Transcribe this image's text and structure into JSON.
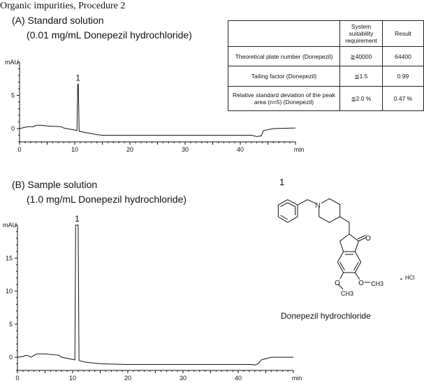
{
  "title": "Organic impurities, Procedure 2",
  "colors": {
    "trace": "#111111",
    "axis": "#111111"
  },
  "table": {
    "headers": [
      "",
      "System suitability requirement",
      "Result"
    ],
    "rows": [
      {
        "parameter": "Theoretical plate number (Donepezil)",
        "requirement": "≧40000",
        "result": "64400"
      },
      {
        "parameter": "Tailing factor (Donepezil)",
        "requirement": "≦1.5",
        "result": "0.99"
      },
      {
        "parameter": "Relative standard deviation of the peak area (n=5) (Donepezil)",
        "requirement": "≦2.0 %",
        "result": "0.47 %"
      }
    ]
  },
  "structure": {
    "label_number": "1",
    "name": "Donepezil hydrochloride",
    "atoms": {
      "n": "N",
      "o": "O",
      "ch3": "CH3",
      "hcl": "HCl",
      "dot": "•"
    }
  },
  "chart_data": [
    {
      "type": "line",
      "title": "(A) Standard solution",
      "subtitle": "(0.01 mg/mL Donepezil hydrochloride)",
      "xlabel": "min",
      "ylabel": "mAU",
      "xlim": [
        0,
        50
      ],
      "ylim": [
        -2,
        10
      ],
      "xticks": [
        0,
        10,
        20,
        30,
        40
      ],
      "yticks": [
        0,
        5
      ],
      "grid": false,
      "peak_labels": [
        {
          "x": 10.6,
          "y": 6.7,
          "text": "1"
        }
      ],
      "x": [
        0,
        1,
        1.5,
        2,
        2.5,
        3,
        4,
        5,
        7.5,
        8,
        10.4,
        10.55,
        10.65,
        10.8,
        12,
        14,
        15,
        25,
        42,
        43,
        43.8,
        44.2,
        46,
        50
      ],
      "y": [
        0,
        0.2,
        0.3,
        0.3,
        0.3,
        0.5,
        0.5,
        0.4,
        0.3,
        0.1,
        -0.3,
        6.7,
        6.7,
        -0.4,
        -0.6,
        -0.9,
        -1.0,
        -1.0,
        -1.0,
        -1.2,
        -1.1,
        -0.3,
        0,
        0.1
      ]
    },
    {
      "type": "line",
      "title": "(B) Sample solution",
      "subtitle": "(1.0 mg/mL Donepezil hydrochloride)",
      "xlabel": "min",
      "ylabel": "mAU",
      "xlim": [
        0,
        50
      ],
      "ylim": [
        -2,
        20
      ],
      "xticks": [
        0,
        10,
        20,
        30,
        40
      ],
      "yticks": [
        0,
        5,
        10,
        15
      ],
      "grid": false,
      "peak_labels": [
        {
          "x": 10.8,
          "y": 20,
          "text": "1"
        }
      ],
      "x": [
        0,
        1,
        1.5,
        2,
        2.5,
        3,
        3.5,
        5,
        7.5,
        8,
        10.4,
        10.55,
        11.0,
        11.15,
        12,
        13,
        15,
        20,
        30,
        42.5,
        43,
        43.6,
        44.2,
        46,
        50
      ],
      "y": [
        0,
        0.1,
        0.3,
        0.2,
        0,
        0.3,
        0.5,
        0.5,
        0.3,
        0,
        -0.4,
        20,
        20,
        -0.5,
        -0.7,
        -0.8,
        -1.0,
        -1.1,
        -1.1,
        -1.1,
        -1.2,
        -1.0,
        -0.4,
        0,
        0
      ]
    }
  ]
}
